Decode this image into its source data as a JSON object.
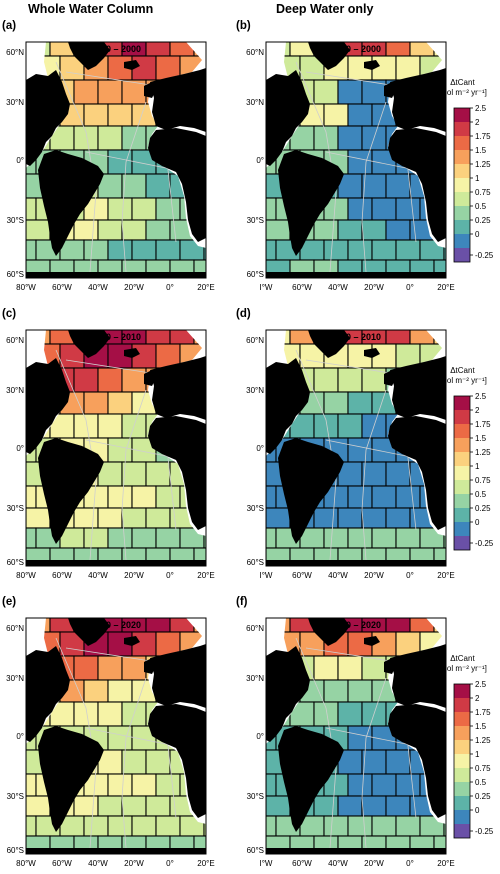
{
  "columns": {
    "left": "Whole Water Column",
    "right": "Deep Water only"
  },
  "panels": [
    {
      "letter": "(a)",
      "period": "1990 – 2000"
    },
    {
      "letter": "(b)",
      "period": "1990 – 2000"
    },
    {
      "letter": "(c)",
      "period": "2000 – 2010"
    },
    {
      "letter": "(d)",
      "period": "2000 – 2010"
    },
    {
      "letter": "(e)",
      "period": "2010 – 2020"
    },
    {
      "letter": "(f)",
      "period": "2010 – 2020"
    }
  ],
  "axes": {
    "y_ticks": [
      "60°N",
      "30°N",
      "0°",
      "30°S",
      "60°S"
    ],
    "x_ticks_left": [
      "80°W",
      "60°W",
      "40°W",
      "20°W",
      "0°",
      "20°E"
    ],
    "x_ticks_right": [
      "I°W",
      "60°W",
      "40°W",
      "20°W",
      "0°",
      "20°E"
    ]
  },
  "colorbar": {
    "title_line1": "ΔtCant",
    "title_line2": "[mol m⁻² yr⁻¹]",
    "ticks": [
      "2.5",
      "2",
      "1.75",
      "1.5",
      "1.25",
      "1",
      "0.75",
      "0.5",
      "0.25",
      "0",
      "-0.25"
    ],
    "colors": [
      "#a50f46",
      "#d03a45",
      "#ec6a45",
      "#f7a05c",
      "#fbd17e",
      "#f6f3a6",
      "#cfea9a",
      "#96d3a4",
      "#5db3a8",
      "#3d86bc",
      "#6a50a7"
    ]
  },
  "colors": {
    "land": "#000000",
    "ocean_bg": "#ffffff"
  },
  "fields": {
    "a": [
      [
        0.9,
        1.3,
        1.9,
        2.2,
        2.3,
        2.2,
        1.9,
        1.5
      ],
      [
        1.0,
        1.4,
        1.7,
        1.9,
        2.0,
        1.8,
        1.6,
        1.4
      ],
      [
        1.2,
        1.4,
        1.5,
        1.6,
        1.5,
        1.5,
        1.4,
        1.3
      ],
      [
        1.1,
        1.3,
        1.3,
        1.4,
        1.4,
        1.3,
        1.2,
        1.1
      ],
      [
        0.8,
        0.9,
        0.9,
        0.8,
        0.7,
        0.7,
        0.7,
        0.7
      ],
      [
        0.6,
        0.7,
        0.7,
        0.4,
        0.3,
        0.3,
        0.3,
        0.3
      ],
      [
        0.7,
        0.8,
        0.9,
        0.7,
        0.5,
        0.4,
        0.4,
        0.4
      ],
      [
        0.9,
        0.9,
        1.0,
        0.9,
        0.8,
        0.6,
        0.6,
        0.6
      ],
      [
        0.9,
        1.0,
        1.0,
        0.9,
        0.8,
        0.7,
        0.7,
        0.7
      ],
      [
        0.5,
        0.5,
        0.5,
        0.4,
        0.4,
        0.4,
        0.4,
        0.4
      ],
      [
        0.5,
        0.6,
        0.6,
        0.5,
        0.5,
        0.5,
        0.5,
        0.5
      ]
    ],
    "b": [
      [
        0.9,
        1.2,
        1.7,
        2.0,
        2.1,
        1.9,
        1.4,
        1.1
      ],
      [
        0.8,
        0.9,
        1.0,
        1.1,
        1.1,
        1.0,
        0.9,
        0.8
      ],
      [
        0.8,
        0.9,
        0.9,
        0.0,
        0.0,
        0.0,
        0.0,
        0.0
      ],
      [
        0.9,
        1.0,
        1.1,
        0.0,
        0.0,
        0.0,
        0.0,
        0.0
      ],
      [
        0.5,
        0.6,
        0.6,
        0.0,
        0.0,
        0.0,
        0.0,
        0.0
      ],
      [
        0.5,
        0.5,
        0.5,
        0.0,
        0.0,
        0.0,
        0.0,
        0.0
      ],
      [
        0.3,
        0.3,
        0.3,
        0.0,
        0.0,
        0.0,
        0.0,
        0.0
      ],
      [
        0.6,
        0.6,
        0.6,
        0.1,
        0.0,
        0.0,
        0.0,
        0.0
      ],
      [
        0.5,
        0.5,
        0.5,
        0.4,
        0.3,
        0.0,
        0.0,
        0.0
      ],
      [
        0.3,
        0.4,
        0.4,
        0.3,
        0.3,
        0.3,
        0.3,
        0.3
      ],
      [
        0.4,
        0.5,
        0.5,
        0.4,
        0.4,
        0.4,
        0.4,
        0.4
      ]
    ],
    "c": [
      [
        1.5,
        1.9,
        2.2,
        2.4,
        2.3,
        2.2,
        2.0,
        1.6
      ],
      [
        1.9,
        2.2,
        2.4,
        2.3,
        2.1,
        1.8,
        1.5,
        1.3
      ],
      [
        2.0,
        2.2,
        2.0,
        1.8,
        1.6,
        1.5,
        1.4,
        1.3
      ],
      [
        1.6,
        1.7,
        1.5,
        1.3,
        1.0,
        1.0,
        1.0,
        1.0
      ],
      [
        1.2,
        1.2,
        1.2,
        1.1,
        0.9,
        0.8,
        0.8,
        0.8
      ],
      [
        0.9,
        1.0,
        1.0,
        0.9,
        0.8,
        0.7,
        0.7,
        0.7
      ],
      [
        0.9,
        1.0,
        1.0,
        0.9,
        0.9,
        0.8,
        0.8,
        0.8
      ],
      [
        1.2,
        1.2,
        1.2,
        1.0,
        1.0,
        0.9,
        0.9,
        0.9
      ],
      [
        1.1,
        1.1,
        1.1,
        1.0,
        0.9,
        0.9,
        0.9,
        0.9
      ],
      [
        0.7,
        0.8,
        0.8,
        0.7,
        0.7,
        0.7,
        0.7,
        0.7
      ],
      [
        0.6,
        0.6,
        0.6,
        0.6,
        0.6,
        0.6,
        0.6,
        0.6
      ]
    ],
    "d": [
      [
        1.2,
        1.5,
        1.8,
        2.1,
        2.2,
        2.0,
        1.7,
        1.3
      ],
      [
        1.0,
        1.0,
        1.1,
        1.1,
        1.0,
        0.9,
        0.9,
        0.8
      ],
      [
        0.8,
        0.8,
        0.8,
        0.8,
        0.8,
        0.7,
        0.7,
        0.7
      ],
      [
        0.6,
        0.6,
        0.5,
        0.4,
        0.3,
        0.3,
        0.3,
        0.3
      ],
      [
        0.4,
        0.3,
        0.3,
        0.3,
        0.2,
        0.2,
        0.2,
        0.2
      ],
      [
        0.2,
        0.2,
        0.2,
        0.1,
        0.1,
        0.1,
        0.1,
        0.1
      ],
      [
        0.2,
        0.2,
        0.2,
        0.1,
        0.1,
        0.1,
        0.1,
        0.1
      ],
      [
        0.2,
        0.2,
        0.2,
        0.1,
        0.1,
        0.1,
        0.1,
        0.1
      ],
      [
        0.2,
        0.2,
        0.2,
        0.2,
        0.2,
        0.2,
        0.2,
        0.2
      ],
      [
        0.6,
        0.6,
        0.6,
        0.6,
        0.6,
        0.6,
        0.6,
        0.6
      ],
      [
        0.5,
        0.5,
        0.5,
        0.5,
        0.5,
        0.5,
        0.5,
        0.5
      ]
    ],
    "e": [
      [
        1.7,
        2.2,
        2.5,
        2.6,
        2.6,
        2.4,
        2.1,
        1.7
      ],
      [
        1.9,
        2.2,
        2.4,
        2.3,
        2.1,
        1.9,
        1.6,
        1.4
      ],
      [
        1.6,
        1.8,
        1.8,
        1.6,
        1.5,
        1.4,
        1.3,
        1.2
      ],
      [
        1.4,
        1.5,
        1.4,
        1.2,
        1.1,
        1.0,
        1.0,
        1.0
      ],
      [
        1.0,
        1.0,
        1.1,
        1.0,
        0.9,
        0.8,
        0.8,
        0.8
      ],
      [
        0.8,
        0.8,
        0.9,
        0.8,
        0.8,
        0.8,
        0.8,
        0.8
      ],
      [
        0.9,
        0.9,
        1.0,
        1.0,
        0.9,
        0.9,
        0.9,
        0.9
      ],
      [
        1.1,
        1.1,
        1.1,
        1.0,
        1.0,
        0.9,
        0.9,
        0.9
      ],
      [
        1.0,
        1.0,
        1.0,
        0.9,
        0.9,
        0.9,
        0.9,
        0.9
      ],
      [
        0.8,
        0.8,
        0.8,
        0.8,
        0.8,
        0.8,
        0.8,
        0.8
      ],
      [
        0.7,
        0.7,
        0.7,
        0.7,
        0.7,
        0.7,
        0.7,
        0.7
      ]
    ],
    "f": [
      [
        1.6,
        2.0,
        2.4,
        2.6,
        2.5,
        2.3,
        1.9,
        1.4
      ],
      [
        1.5,
        1.7,
        1.9,
        1.8,
        1.6,
        1.4,
        1.2,
        1.0
      ],
      [
        0.9,
        0.9,
        1.0,
        1.0,
        0.9,
        0.8,
        0.8,
        0.8
      ],
      [
        0.8,
        0.7,
        0.7,
        0.6,
        0.6,
        0.6,
        0.6,
        0.6
      ],
      [
        0.5,
        0.5,
        0.5,
        0.4,
        0.4,
        0.4,
        0.4,
        0.4
      ],
      [
        0.3,
        0.3,
        0.3,
        0.2,
        0.2,
        0.2,
        0.2,
        0.2
      ],
      [
        0.3,
        0.3,
        0.3,
        0.2,
        0.2,
        0.2,
        0.2,
        0.2
      ],
      [
        0.3,
        0.3,
        0.3,
        0.2,
        0.2,
        0.2,
        0.2,
        0.2
      ],
      [
        0.3,
        0.3,
        0.3,
        0.2,
        0.2,
        0.2,
        0.2,
        0.2
      ],
      [
        0.7,
        0.7,
        0.7,
        0.7,
        0.7,
        0.7,
        0.7,
        0.7
      ],
      [
        0.6,
        0.6,
        0.6,
        0.6,
        0.6,
        0.6,
        0.6,
        0.6
      ]
    ]
  }
}
